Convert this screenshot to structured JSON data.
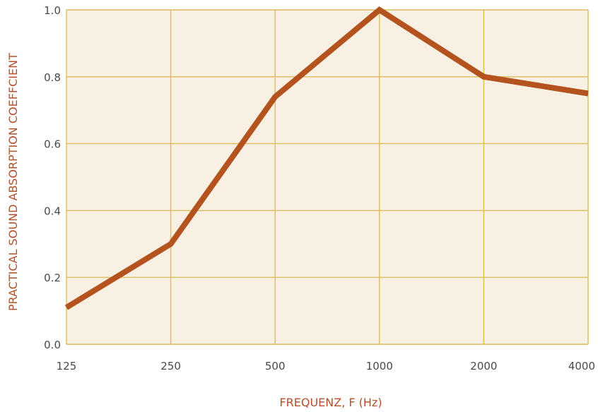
{
  "chart_data": {
    "type": "line",
    "title": "",
    "xlabel": "FREQUENZ, F (Hz)",
    "ylabel": "PRACTICAL SOUND ABSORPTION COEFFCIENT",
    "categories": [
      "125",
      "250",
      "500",
      "1000",
      "2000",
      "4000"
    ],
    "series": [
      {
        "values": [
          0.11,
          0.3,
          0.74,
          1.0,
          0.8,
          0.75
        ]
      }
    ],
    "ylim": [
      0.0,
      1.0
    ],
    "yticks": [
      "0.0",
      "0.2",
      "0.4",
      "0.6",
      "0.8",
      "1.0"
    ],
    "grid": true,
    "legend": "none"
  },
  "colors": {
    "plot_background": "#f8f1e3",
    "grid": "#dcbc5e",
    "line": "#b5531f",
    "axis_title": "#b5502a",
    "tick_label": "#4a4a4a"
  }
}
